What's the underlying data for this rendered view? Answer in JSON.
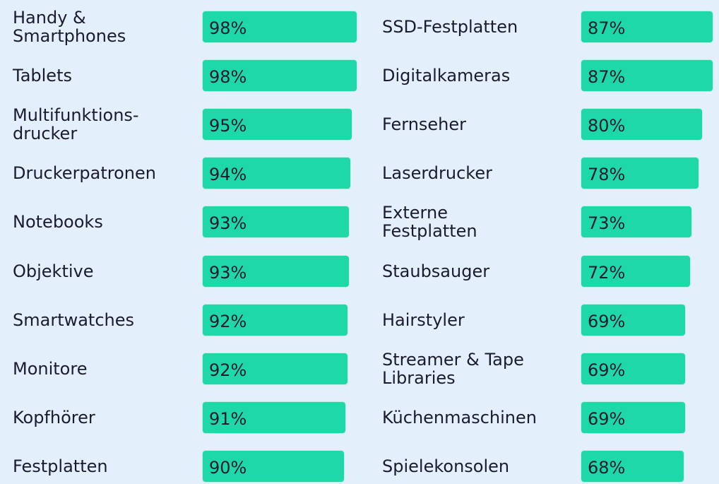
{
  "chart_data": [
    {
      "type": "bar",
      "color": "#1fd8a8",
      "categories": [
        "Handy &\nSmartphones",
        "Tablets",
        "Multifunktions-\ndrucker",
        "Druckerpatronen",
        "Notebooks",
        "Objektive",
        "Smartwatches",
        "Monitore",
        "Kopfhörer",
        "Festplatten"
      ],
      "values": [
        98,
        98,
        95,
        94,
        93,
        93,
        92,
        92,
        91,
        90
      ],
      "value_labels": [
        "98%",
        "98%",
        "95%",
        "94%",
        "93%",
        "93%",
        "92%",
        "92%",
        "91%",
        "90%"
      ]
    },
    {
      "type": "bar",
      "color": "#1fd8a8",
      "categories": [
        "SSD-Festplatten",
        "Digitalkameras",
        "Fernseher",
        "Laserdrucker",
        "Externe\nFestplatten",
        "Staubsauger",
        "Hairstyler",
        "Streamer & Tape\nLibraries",
        "Küchenmaschinen",
        "Spielekonsolen"
      ],
      "values": [
        87,
        87,
        80,
        78,
        73,
        72,
        69,
        69,
        69,
        68
      ],
      "value_labels": [
        "87%",
        "87%",
        "80%",
        "78%",
        "73%",
        "72%",
        "69%",
        "69%",
        "69%",
        "68%"
      ]
    }
  ]
}
